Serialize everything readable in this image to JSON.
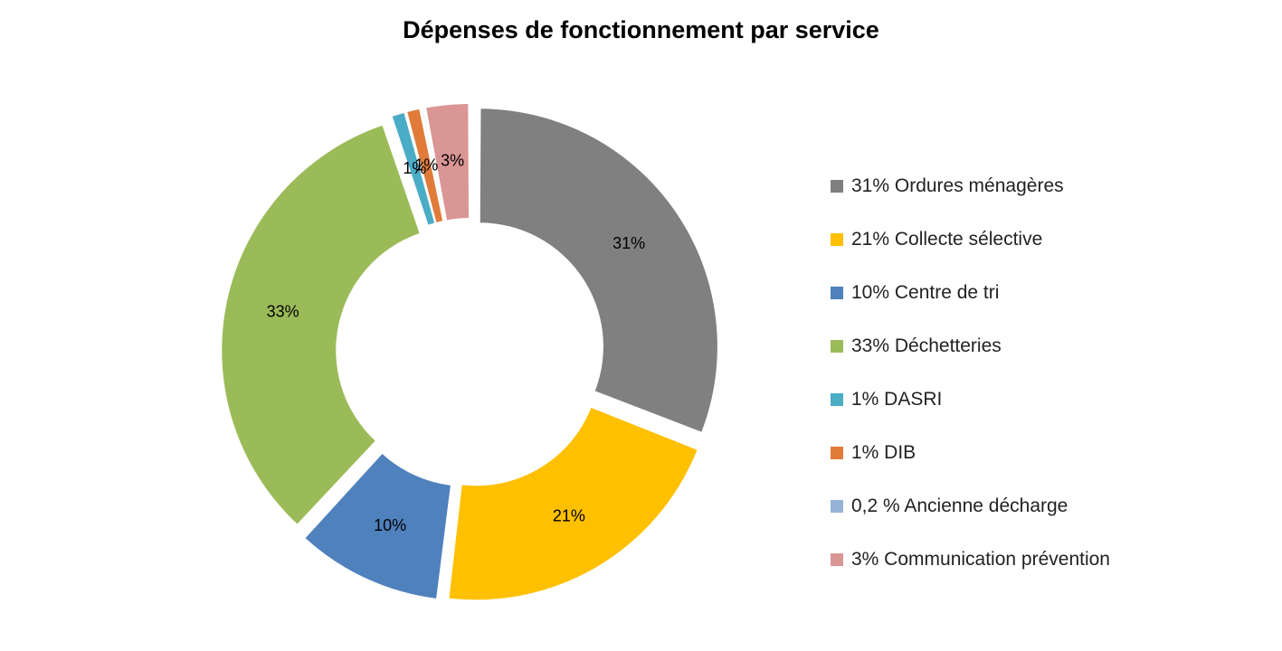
{
  "chart_data": {
    "type": "pie",
    "variant": "donut",
    "title": "Dépenses de fonctionnement par service",
    "legend_position": "right",
    "series": [
      {
        "name": "31% Ordures ménagères",
        "value": 31,
        "label": "31%",
        "color": "#808080"
      },
      {
        "name": "21% Collecte sélective",
        "value": 21,
        "label": "21%",
        "color": "#FFC000"
      },
      {
        "name": "10% Centre de tri",
        "value": 10,
        "label": "10%",
        "color": "#4F81BD"
      },
      {
        "name": "33% Déchetteries",
        "value": 33,
        "label": "33%",
        "color": "#9BBB59"
      },
      {
        "name": "1% DASRI",
        "value": 1,
        "label": "1%",
        "color": "#4BACC6"
      },
      {
        "name": "1% DIB",
        "value": 1,
        "label": "1%",
        "color": "#E07B39"
      },
      {
        "name": "0,2 % Ancienne décharge",
        "value": 0.2,
        "label": "",
        "color": "#95B3D7"
      },
      {
        "name": "3% Communication prévention",
        "value": 3,
        "label": "3%",
        "color": "#D99694"
      }
    ]
  }
}
